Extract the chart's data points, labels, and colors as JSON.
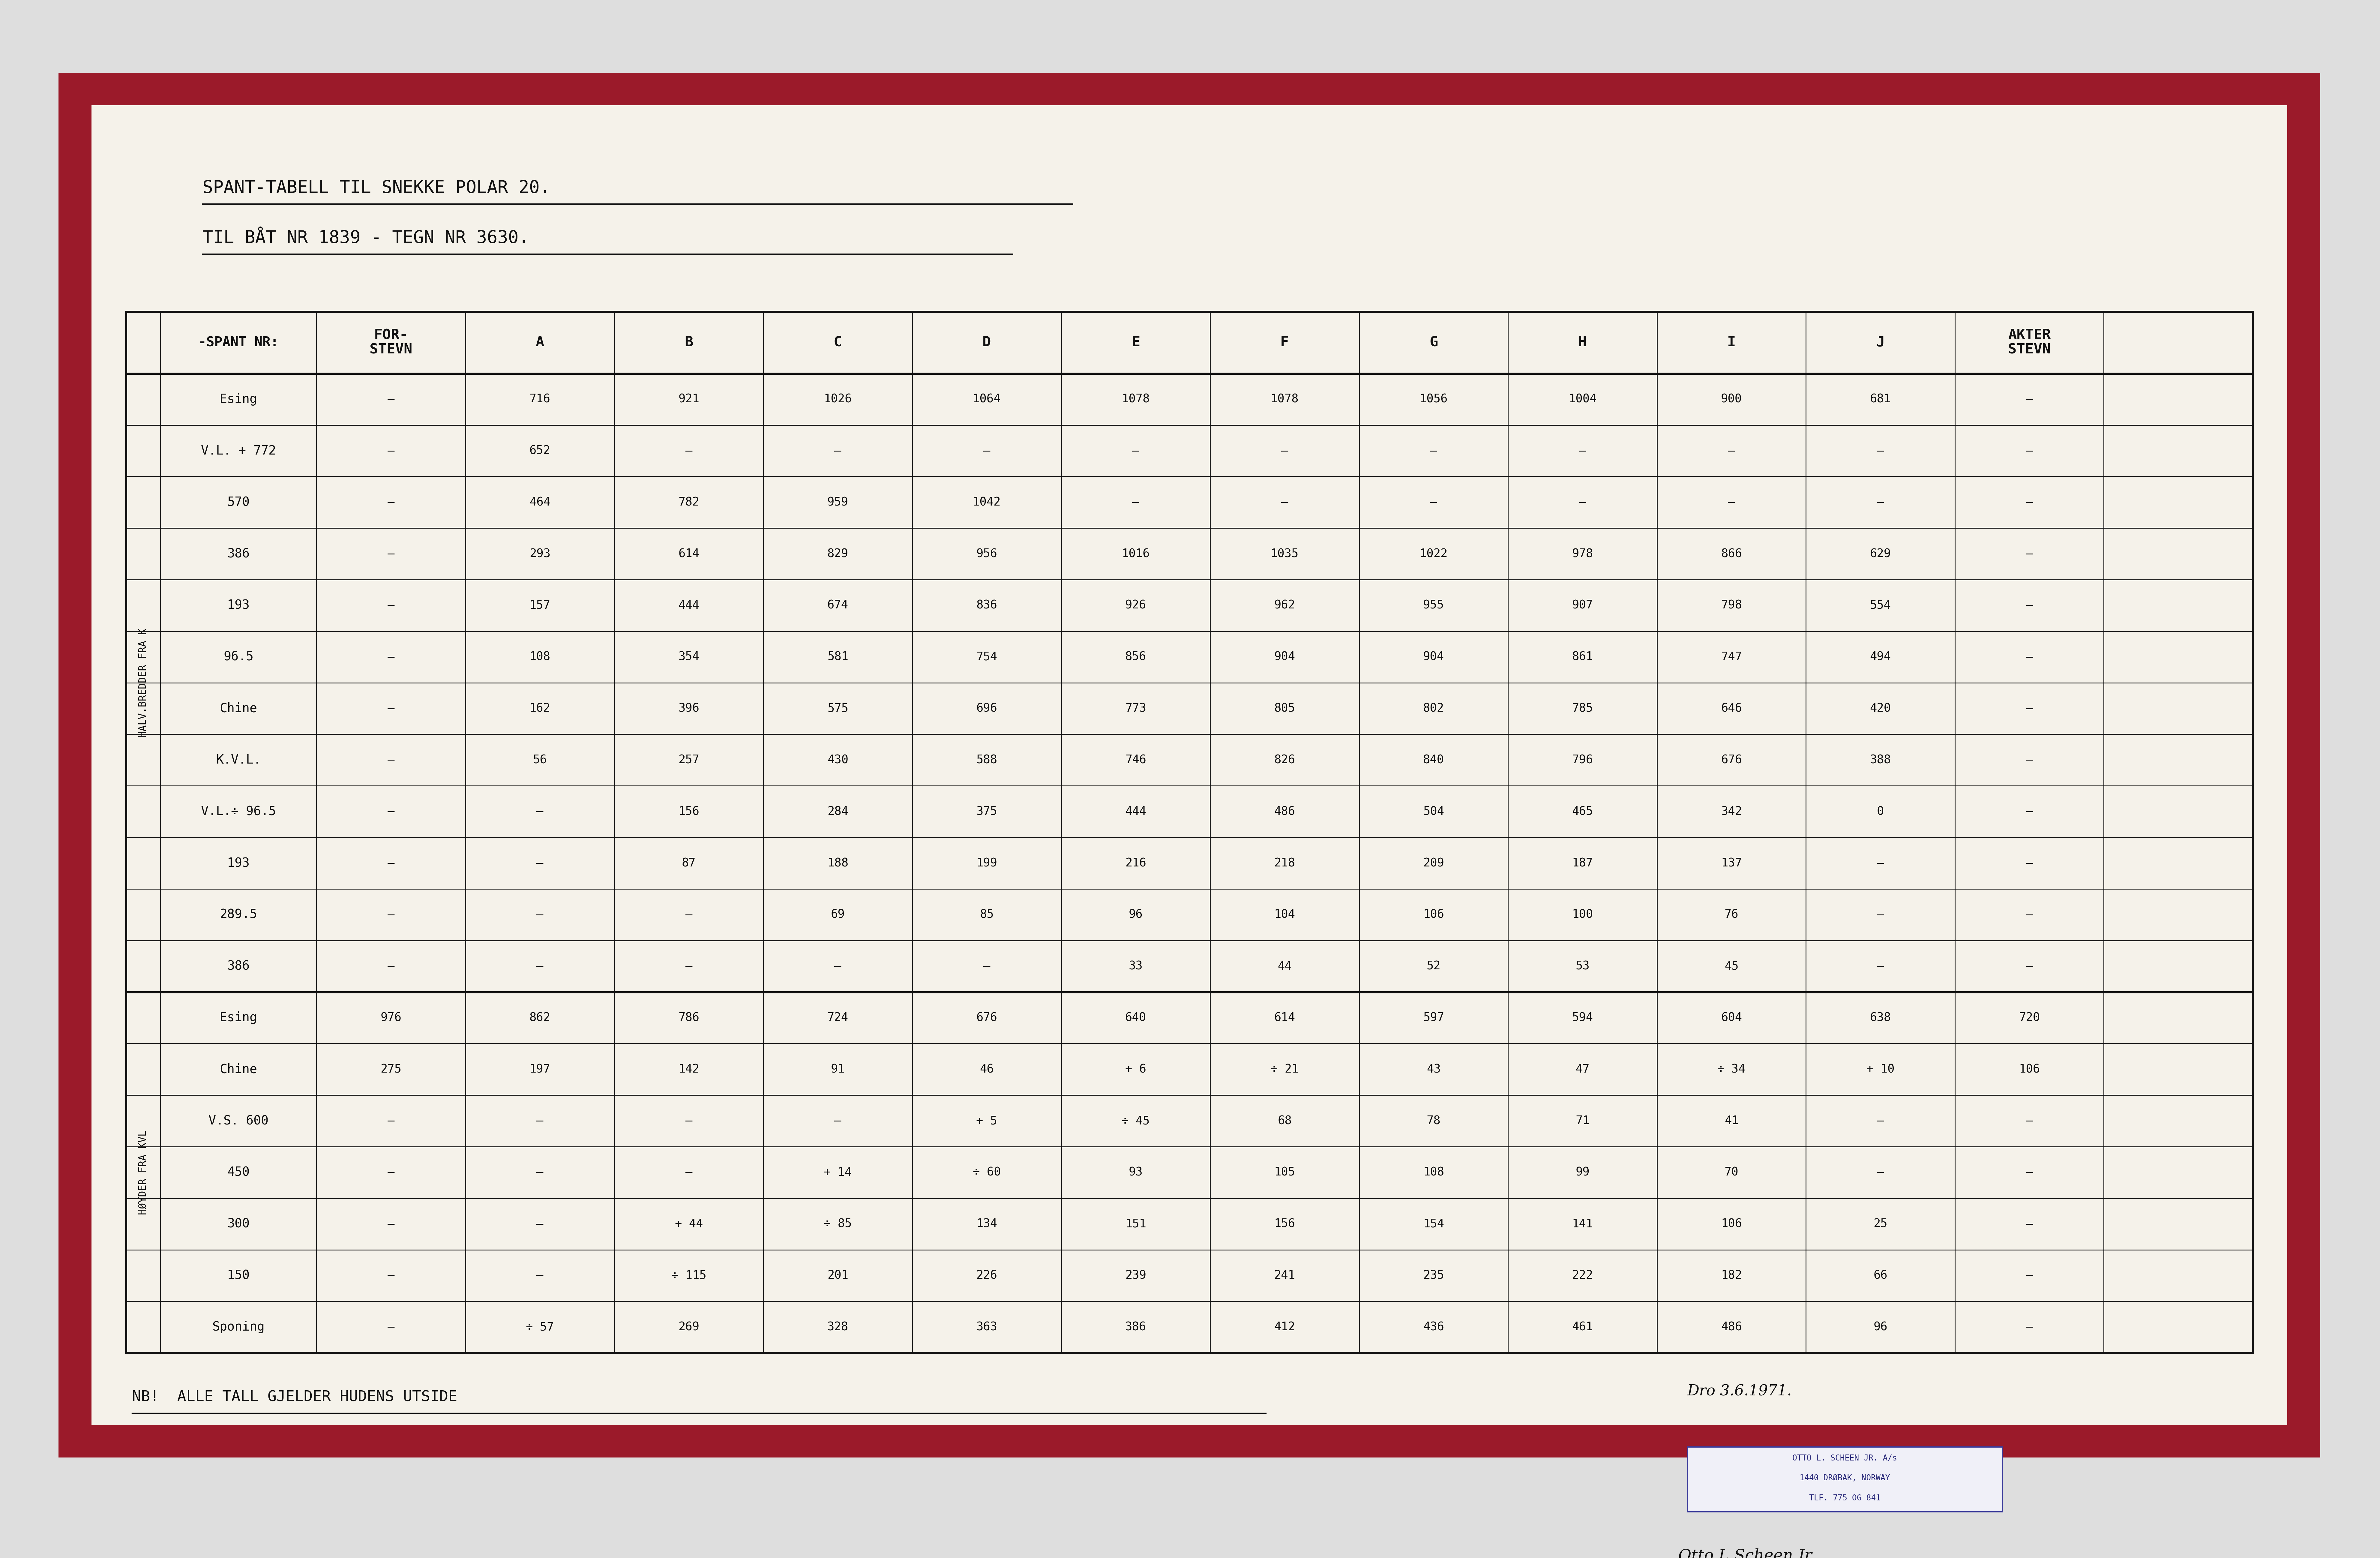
{
  "bg_outer": "#dedede",
  "bg_red_border": "#9b1a2a",
  "bg_paper": "#f5f2ea",
  "title1": "SPANT-TABELL TIL SNEKKE POLAR 20.",
  "title2": "TIL BÅT NR 1839 - TEGN NR 3630.",
  "note": "NB!  ALLE TALL GJELDER HUDENS UTSIDE",
  "date": "Dro 3.6.1971.",
  "stamp_line1": "OTTO L. SCHEEN JR. A/s",
  "stamp_line2": "1440 DRØBAK, NORWAY",
  "stamp_line3": "TLF. 775 OG 841",
  "signature": "Otto L.Scheen Jr.",
  "group_label1": "HALV.BREDDER FRA K",
  "group_label2": "HØYDER FRA KVL",
  "header_labels": [
    "-SPANT NR:",
    "FOR-\nSTEVN",
    "A",
    "B",
    "C",
    "D",
    "E",
    "F",
    "G",
    "H",
    "I",
    "J",
    "AKTER\nSTEVN"
  ],
  "rows_halv": [
    [
      "Esing",
      "—",
      "716",
      "921",
      "1026",
      "1064",
      "1078",
      "1078",
      "1056",
      "1004",
      "900",
      "681",
      "—"
    ],
    [
      "V.L. + 772",
      "—",
      "652",
      "—",
      "—",
      "—",
      "—",
      "—",
      "—",
      "—",
      "—",
      "—",
      "—"
    ],
    [
      "570",
      "—",
      "464",
      "782",
      "959",
      "1042",
      "—",
      "—",
      "—",
      "—",
      "—",
      "—",
      "—"
    ],
    [
      "386",
      "—",
      "293",
      "614",
      "829",
      "956",
      "1016",
      "1035",
      "1022",
      "978",
      "866",
      "629",
      "—"
    ],
    [
      "193",
      "—",
      "157",
      "444",
      "674",
      "836",
      "926",
      "962",
      "955",
      "907",
      "798",
      "554",
      "—"
    ],
    [
      "96.5",
      "—",
      "108",
      "354",
      "581",
      "754",
      "856",
      "904",
      "904",
      "861",
      "747",
      "494",
      "—"
    ],
    [
      "Chine",
      "—",
      "162",
      "396",
      "575",
      "696",
      "773",
      "805",
      "802",
      "785",
      "646",
      "420",
      "—"
    ],
    [
      "K.V.L.",
      "—",
      "56",
      "257",
      "430",
      "588",
      "746",
      "826",
      "840",
      "796",
      "676",
      "388",
      "—"
    ],
    [
      "V.L.÷ 96.5",
      "—",
      "—",
      "156",
      "284",
      "375",
      "444",
      "486",
      "504",
      "465",
      "342",
      "0",
      "—"
    ],
    [
      "193",
      "—",
      "—",
      "87",
      "188",
      "199",
      "216",
      "218",
      "209",
      "187",
      "137",
      "—",
      "—"
    ],
    [
      "289.5",
      "—",
      "—",
      "—",
      "69",
      "85",
      "96",
      "104",
      "106",
      "100",
      "76",
      "—",
      "—"
    ],
    [
      "386",
      "—",
      "—",
      "—",
      "—",
      "—",
      "33",
      "44",
      "52",
      "53",
      "45",
      "—",
      "—"
    ]
  ],
  "rows_hoyd": [
    [
      "Esing",
      "976",
      "862",
      "786",
      "724",
      "676",
      "640",
      "614",
      "597",
      "594",
      "604",
      "638",
      "720"
    ],
    [
      "Chine",
      "275",
      "197",
      "142",
      "91",
      "46",
      "+ 6",
      "÷ 21",
      "43",
      "47",
      "÷ 34",
      "+ 10",
      "106"
    ],
    [
      "V.S. 600",
      "—",
      "—",
      "—",
      "—",
      "+ 5",
      "÷ 45",
      "68",
      "78",
      "71",
      "41",
      "—",
      "—"
    ],
    [
      "450",
      "—",
      "—",
      "—",
      "+ 14",
      "÷ 60",
      "93",
      "105",
      "108",
      "99",
      "70",
      "—",
      "—"
    ],
    [
      "300",
      "—",
      "—",
      "+ 44",
      "÷ 85",
      "134",
      "151",
      "156",
      "154",
      "141",
      "106",
      "25",
      "—"
    ],
    [
      "150",
      "—",
      "—",
      "÷ 115",
      "201",
      "226",
      "239",
      "241",
      "235",
      "222",
      "182",
      "66",
      "—"
    ],
    [
      "Sponing",
      "—",
      "÷ 57",
      "269",
      "328",
      "363",
      "386",
      "412",
      "436",
      "461",
      "486",
      "96",
      "—"
    ]
  ]
}
